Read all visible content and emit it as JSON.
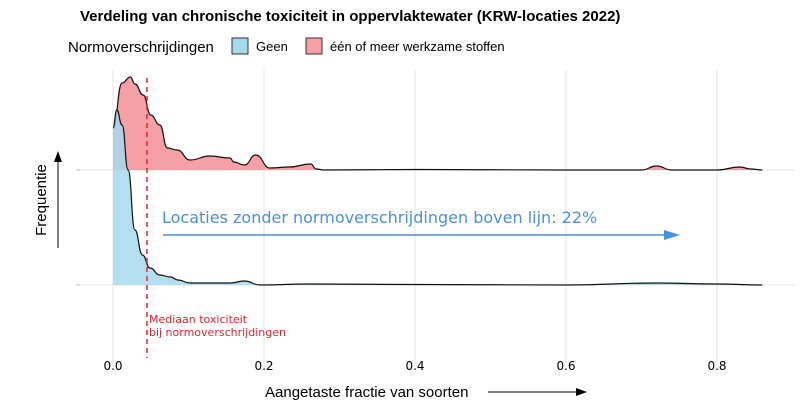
{
  "chart_data": {
    "type": "area",
    "title": "Verdeling van chronische toxiciteit in oppervlaktewater (KRW-locaties 2022)",
    "xlabel": "Aangetaste fractie van soorten",
    "ylabel": "Frequentie",
    "xlim": [
      -0.04,
      0.9
    ],
    "xticks": [
      "0.0",
      "0.2",
      "0.4",
      "0.6",
      "0.8"
    ],
    "xtick_values": [
      0,
      0.2,
      0.4,
      0.6,
      0.8
    ],
    "grid": true,
    "legend": {
      "title": "Normoverschrijdingen",
      "placement": "top-left",
      "entries": [
        {
          "label": "Geen",
          "color": "#a6d9ee"
        },
        {
          "label": "één of meer werkzame stoffen",
          "color": "#f4a0a4"
        }
      ]
    },
    "series": [
      {
        "name": "één of meer werkzame stoffen",
        "color": "#f4a0a4",
        "ridge": 1,
        "x": [
          0,
          0.012,
          0.023,
          0.029,
          0.04,
          0.05,
          0.062,
          0.072,
          0.085,
          0.102,
          0.128,
          0.155,
          0.16,
          0.174,
          0.189,
          0.208,
          0.233,
          0.262,
          0.269,
          0.28,
          0.4,
          0.6,
          0.7,
          0.72,
          0.74,
          0.8,
          0.83,
          0.845,
          0.86
        ],
        "density": [
          4.2,
          8.7,
          9.3,
          8.6,
          7.5,
          5.5,
          4.5,
          2.2,
          2.0,
          1.0,
          1.4,
          1.2,
          0.8,
          0.5,
          1.5,
          0.2,
          0.3,
          0.6,
          0.1,
          0.0,
          0.05,
          0.0,
          0.0,
          0.4,
          0.0,
          0.0,
          0.3,
          0.1,
          0.0
        ]
      },
      {
        "name": "Geen",
        "color": "#a6d9ee",
        "ridge": 0,
        "x": [
          0,
          0.005,
          0.012,
          0.02,
          0.029,
          0.039,
          0.049,
          0.062,
          0.076,
          0.086,
          0.102,
          0.13,
          0.155,
          0.174,
          0.195,
          0.26,
          0.4,
          0.6,
          0.72,
          0.8,
          0.86
        ],
        "density": [
          15.7,
          17.5,
          16.0,
          11.5,
          5.5,
          3.0,
          1.7,
          1.0,
          0.8,
          0.5,
          0.2,
          0.2,
          0.2,
          0.4,
          0.0,
          0.1,
          0.05,
          0.0,
          0.2,
          0.1,
          0.0
        ]
      }
    ],
    "annotations": {
      "median_value": 0.045,
      "median_color": "#e8232a",
      "median_label_line1": "Mediaan toxiciteit",
      "median_label_line2": "bij normoverschrijdingen",
      "above_line_text": "Locaties zonder normoverschrijdingen boven lijn: 22%",
      "above_line_color": "#4a90e2"
    }
  }
}
